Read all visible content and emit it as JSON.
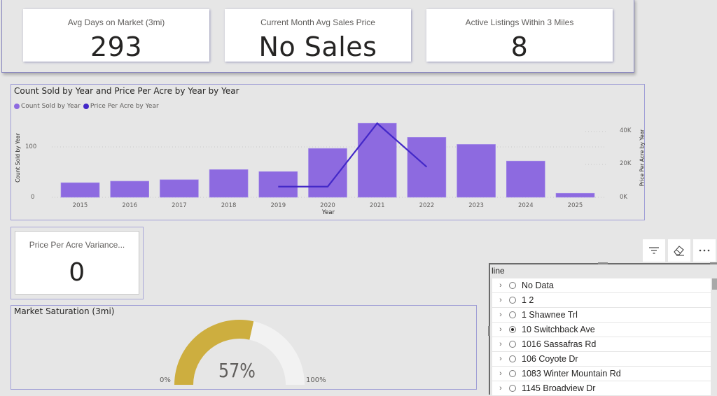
{
  "kpis": [
    {
      "label": "Avg Days on Market (3mi)",
      "value": "293"
    },
    {
      "label": "Current Month Avg Sales Price",
      "value": "No Sales"
    },
    {
      "label": "Active Listings Within 3 Miles",
      "value": "8"
    }
  ],
  "combo_chart": {
    "title": "Count Sold by Year and Price Per Acre by Year by Year",
    "legend": [
      {
        "label": "Count Sold by Year",
        "color": "#8d6ae0"
      },
      {
        "label": "Price Per Acre by Year",
        "color": "#4328c8"
      }
    ],
    "y_left_title": "Count Sold by Year",
    "y_right_title": "Price Per Acre by Year",
    "x_title": "Year",
    "y_left_ticks": [
      "100",
      "0"
    ],
    "y_right_ticks": [
      "40K",
      "20K",
      "0K"
    ]
  },
  "chart_data": {
    "type": "bar",
    "title": "Count Sold by Year and Price Per Acre by Year by Year",
    "xlabel": "Year",
    "ylabel": "Count Sold by Year",
    "y2label": "Price Per Acre by Year",
    "categories": [
      "2015",
      "2016",
      "2017",
      "2018",
      "2019",
      "2020",
      "2021",
      "2022",
      "2023",
      "2024",
      "2025"
    ],
    "series": [
      {
        "name": "Count Sold by Year",
        "type": "bar",
        "axis": "left",
        "color": "#8d6ae0",
        "values": [
          29,
          32,
          35,
          55,
          51,
          97,
          147,
          119,
          105,
          72,
          8
        ]
      },
      {
        "name": "Price Per Acre by Year",
        "type": "line",
        "axis": "right",
        "color": "#4328c8",
        "values": [
          null,
          null,
          null,
          null,
          6500,
          6500,
          45000,
          18500,
          null,
          null,
          null
        ]
      }
    ],
    "ylim": [
      0,
      150
    ],
    "y2lim": [
      0,
      45000
    ],
    "grid": true,
    "legend_position": "top-left"
  },
  "variance_card": {
    "label": "Price Per Acre Variance...",
    "value": "0"
  },
  "gauge": {
    "title": "Market Saturation (3mi)",
    "value": 57,
    "value_label": "57%",
    "min_label": "0%",
    "max_label": "100%",
    "fill_color": "#cdae3f",
    "track_color": "#f2f2f2"
  },
  "slicer": {
    "header": "line",
    "toolbar": [
      "filter-icon",
      "eraser-icon",
      "more-options-icon"
    ],
    "items": [
      {
        "label": "No Data",
        "selected": false
      },
      {
        "label": "1 2",
        "selected": false
      },
      {
        "label": "1 Shawnee Trl",
        "selected": false
      },
      {
        "label": "10 Switchback Ave",
        "selected": true
      },
      {
        "label": "1016 Sassafras Rd",
        "selected": false
      },
      {
        "label": "106 Coyote Dr",
        "selected": false
      },
      {
        "label": "1083 Winter Mountain Rd",
        "selected": false
      },
      {
        "label": "1145 Broadview Dr",
        "selected": false
      }
    ]
  }
}
